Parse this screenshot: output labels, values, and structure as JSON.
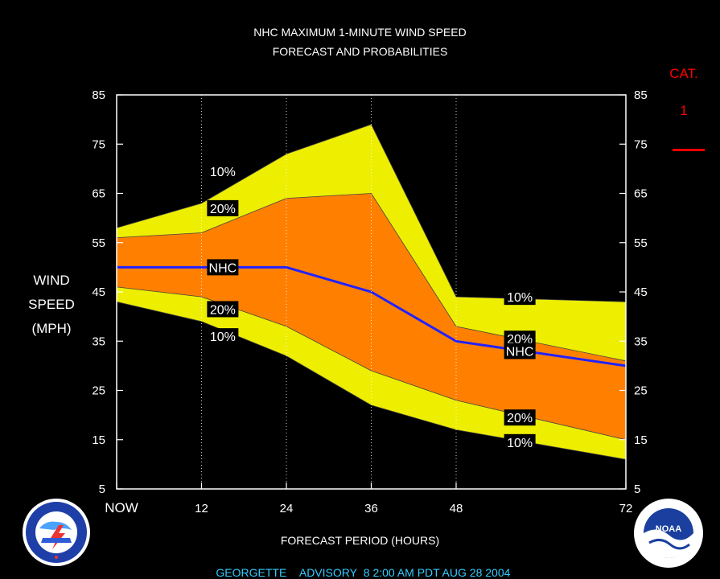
{
  "header": {
    "title_line1": "NHC MAXIMUM 1-MINUTE WIND SPEED",
    "title_line2": "FORECAST AND PROBABILITIES"
  },
  "y_axis_label": [
    "WIND",
    "SPEED",
    "(MPH)"
  ],
  "x_axis_label": "FORECAST PERIOD (HOURS)",
  "category": {
    "label": "CAT.",
    "value": "1",
    "color": "#ff0000"
  },
  "advisory": {
    "storm": "GEORGETTE",
    "text": "ADVISORY",
    "number": "8",
    "time": "2:00 AM PDT AUG 28 2004"
  },
  "logos": {
    "left": "noaa-nws-logo",
    "right": "noaa-logo"
  },
  "colors": {
    "band_10": "#eeee00",
    "band_20": "#ff8000",
    "nhc_line": "#2222ff",
    "plot_border": "#ffffff",
    "background": "#000000"
  },
  "chart_data": {
    "type": "area",
    "title": "NHC MAXIMUM 1-MINUTE WIND SPEED FORECAST AND PROBABILITIES",
    "xlabel": "FORECAST PERIOD (HOURS)",
    "ylabel": "WIND SPEED (MPH)",
    "xlim": [
      0,
      72
    ],
    "ylim": [
      5,
      85
    ],
    "yticks": [
      5,
      15,
      25,
      35,
      45,
      55,
      65,
      75,
      85
    ],
    "xticks": [
      {
        "value": 0,
        "label": "NOW"
      },
      {
        "value": 12,
        "label": "12"
      },
      {
        "value": 24,
        "label": "24"
      },
      {
        "value": 36,
        "label": "36"
      },
      {
        "value": 48,
        "label": "48"
      },
      {
        "value": 72,
        "label": "72"
      }
    ],
    "dotted_grid_x": [
      12,
      24,
      36,
      48
    ],
    "x": [
      0,
      12,
      24,
      36,
      48,
      72
    ],
    "series": [
      {
        "name": "10%",
        "values": [
          58,
          63,
          73,
          79,
          44,
          43
        ]
      },
      {
        "name": "20%",
        "values": [
          56,
          57,
          64,
          65,
          38,
          31
        ]
      },
      {
        "name": "NHC",
        "values": [
          50,
          50,
          50,
          45,
          35,
          30
        ]
      },
      {
        "name": "20%",
        "values": [
          46,
          44,
          38,
          29,
          23,
          15
        ]
      },
      {
        "name": "10%",
        "values": [
          43,
          39,
          32,
          22,
          17,
          11
        ]
      }
    ],
    "labels": [
      {
        "text": "10%",
        "x": 15,
        "y": 69.5
      },
      {
        "text": "20%",
        "x": 15,
        "y": 62
      },
      {
        "text": "NHC",
        "x": 15,
        "y": 50
      },
      {
        "text": "20%",
        "x": 15,
        "y": 41.5
      },
      {
        "text": "10%",
        "x": 15,
        "y": 36
      },
      {
        "text": "10%",
        "x": 57,
        "y": 44
      },
      {
        "text": "20%",
        "x": 57,
        "y": 35.5
      },
      {
        "text": "NHC",
        "x": 57,
        "y": 33
      },
      {
        "text": "20%",
        "x": 57,
        "y": 19.5
      },
      {
        "text": "10%",
        "x": 57,
        "y": 14.5
      }
    ]
  }
}
